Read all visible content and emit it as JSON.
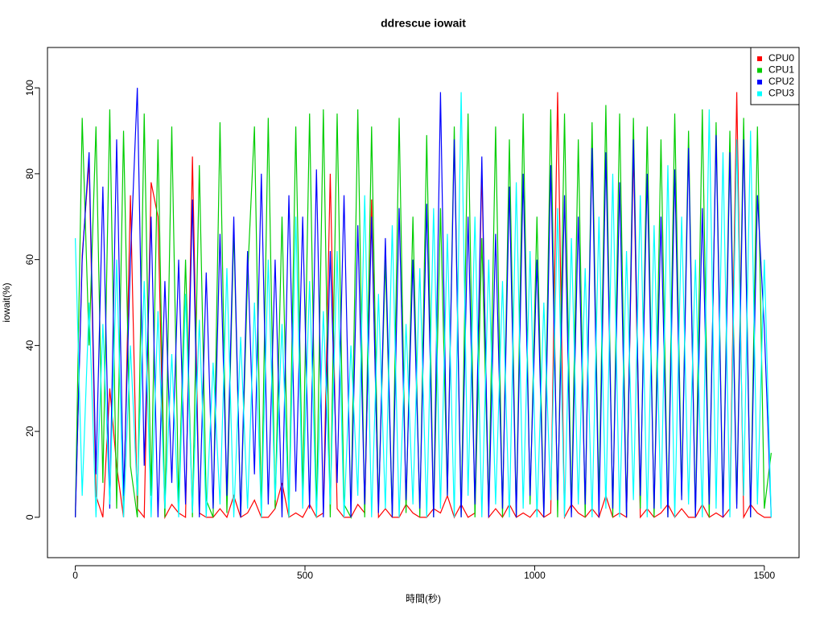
{
  "chart_data": {
    "type": "line",
    "title": "ddrescue iowait",
    "x_label": "時間(秒)",
    "y_label": "iowait(%)",
    "x": [
      0,
      15,
      30,
      45,
      60,
      75,
      90,
      105,
      120,
      135,
      150,
      165,
      180,
      195,
      210,
      225,
      240,
      255,
      270,
      285,
      300,
      315,
      330,
      345,
      360,
      375,
      390,
      405,
      420,
      435,
      450,
      465,
      480,
      495,
      510,
      525,
      540,
      555,
      570,
      585,
      600,
      615,
      630,
      645,
      660,
      675,
      690,
      705,
      720,
      735,
      750,
      765,
      780,
      795,
      810,
      825,
      840,
      855,
      870,
      885,
      900,
      915,
      930,
      945,
      960,
      975,
      990,
      1005,
      1020,
      1035,
      1050,
      1065,
      1080,
      1095,
      1110,
      1125,
      1140,
      1155,
      1170,
      1185,
      1200,
      1215,
      1230,
      1245,
      1260,
      1275,
      1290,
      1305,
      1320,
      1335,
      1350,
      1365,
      1380,
      1395,
      1410,
      1425,
      1440,
      1455,
      1470,
      1485,
      1500,
      1515
    ],
    "series": [
      {
        "name": "CPU0",
        "color": "#ff0000",
        "values": [
          0,
          61,
          83,
          5,
          0,
          30,
          12,
          0,
          75,
          2,
          0,
          78,
          70,
          0,
          3,
          1,
          0,
          84,
          1,
          0,
          0,
          2,
          0,
          5,
          0,
          1,
          4,
          0,
          0,
          2,
          8,
          0,
          1,
          0,
          3,
          0,
          1,
          80,
          2,
          0,
          0,
          3,
          1,
          74,
          0,
          2,
          0,
          0,
          3,
          1,
          0,
          0,
          2,
          1,
          5,
          0,
          3,
          0,
          1,
          81,
          0,
          2,
          0,
          3,
          0,
          1,
          0,
          2,
          0,
          1,
          99,
          0,
          3,
          1,
          0,
          2,
          0,
          5,
          0,
          1,
          0,
          86,
          0,
          2,
          0,
          1,
          3,
          0,
          2,
          0,
          0,
          3,
          0,
          1,
          0,
          2,
          99,
          0,
          3,
          1,
          0,
          0
        ]
      },
      {
        "name": "CPU1",
        "color": "#00cd00",
        "values": [
          0,
          93,
          40,
          91,
          8,
          95,
          2,
          90,
          12,
          0,
          94,
          5,
          88,
          0,
          91,
          3,
          60,
          0,
          82,
          4,
          0,
          92,
          1,
          67,
          0,
          56,
          91,
          0,
          93,
          2,
          70,
          0,
          91,
          5,
          94,
          0,
          95,
          0,
          94,
          3,
          0,
          95,
          0,
          91,
          2,
          60,
          0,
          93,
          1,
          70,
          0,
          89,
          0,
          72,
          5,
          91,
          0,
          94,
          0,
          65,
          2,
          91,
          0,
          88,
          0,
          94,
          3,
          70,
          0,
          95,
          0,
          94,
          1,
          88,
          0,
          92,
          4,
          96,
          0,
          94,
          0,
          93,
          2,
          91,
          0,
          88,
          0,
          94,
          5,
          90,
          0,
          95,
          0,
          92,
          1,
          90,
          3,
          93,
          0,
          91,
          2,
          15
        ]
      },
      {
        "name": "CPU2",
        "color": "#0000ff",
        "values": [
          0,
          60,
          85,
          10,
          77,
          2,
          88,
          5,
          60,
          100,
          12,
          70,
          0,
          55,
          8,
          60,
          3,
          74,
          0,
          57,
          2,
          66,
          5,
          70,
          0,
          62,
          10,
          80,
          3,
          60,
          0,
          75,
          6,
          70,
          2,
          81,
          0,
          62,
          8,
          75,
          0,
          68,
          3,
          70,
          1,
          65,
          0,
          72,
          4,
          60,
          2,
          73,
          0,
          99,
          5,
          88,
          0,
          70,
          3,
          84,
          0,
          66,
          2,
          77,
          0,
          80,
          5,
          60,
          0,
          82,
          4,
          75,
          0,
          70,
          3,
          86,
          0,
          85,
          2,
          78,
          0,
          88,
          5,
          80,
          2,
          70,
          0,
          81,
          4,
          86,
          0,
          72,
          3,
          89,
          0,
          85,
          2,
          88,
          0,
          75,
          44,
          0
        ]
      },
      {
        "name": "CPU3",
        "color": "#00ffff",
        "values": [
          65,
          5,
          50,
          0,
          45,
          3,
          60,
          0,
          40,
          5,
          55,
          0,
          48,
          2,
          38,
          0,
          52,
          1,
          46,
          0,
          36,
          3,
          58,
          0,
          42,
          2,
          50,
          0,
          60,
          4,
          45,
          0,
          70,
          2,
          55,
          0,
          48,
          3,
          62,
          0,
          40,
          5,
          75,
          0,
          52,
          2,
          68,
          0,
          45,
          3,
          58,
          0,
          72,
          2,
          66,
          0,
          99,
          5,
          70,
          0,
          60,
          3,
          55,
          0,
          78,
          2,
          62,
          0,
          50,
          4,
          72,
          0,
          65,
          3,
          58,
          0,
          70,
          2,
          80,
          0,
          62,
          4,
          75,
          0,
          68,
          2,
          82,
          0,
          70,
          3,
          60,
          0,
          95,
          2,
          85,
          0,
          88,
          5,
          90,
          3,
          60,
          0
        ]
      }
    ],
    "xlim": [
      -60.6,
      1575.6
    ],
    "ylim": [
      -9.4,
      109.4
    ],
    "xticks": [
      0,
      500,
      1000,
      1500
    ],
    "yticks": [
      0,
      20,
      40,
      60,
      80,
      100
    ],
    "legend": "topright"
  }
}
